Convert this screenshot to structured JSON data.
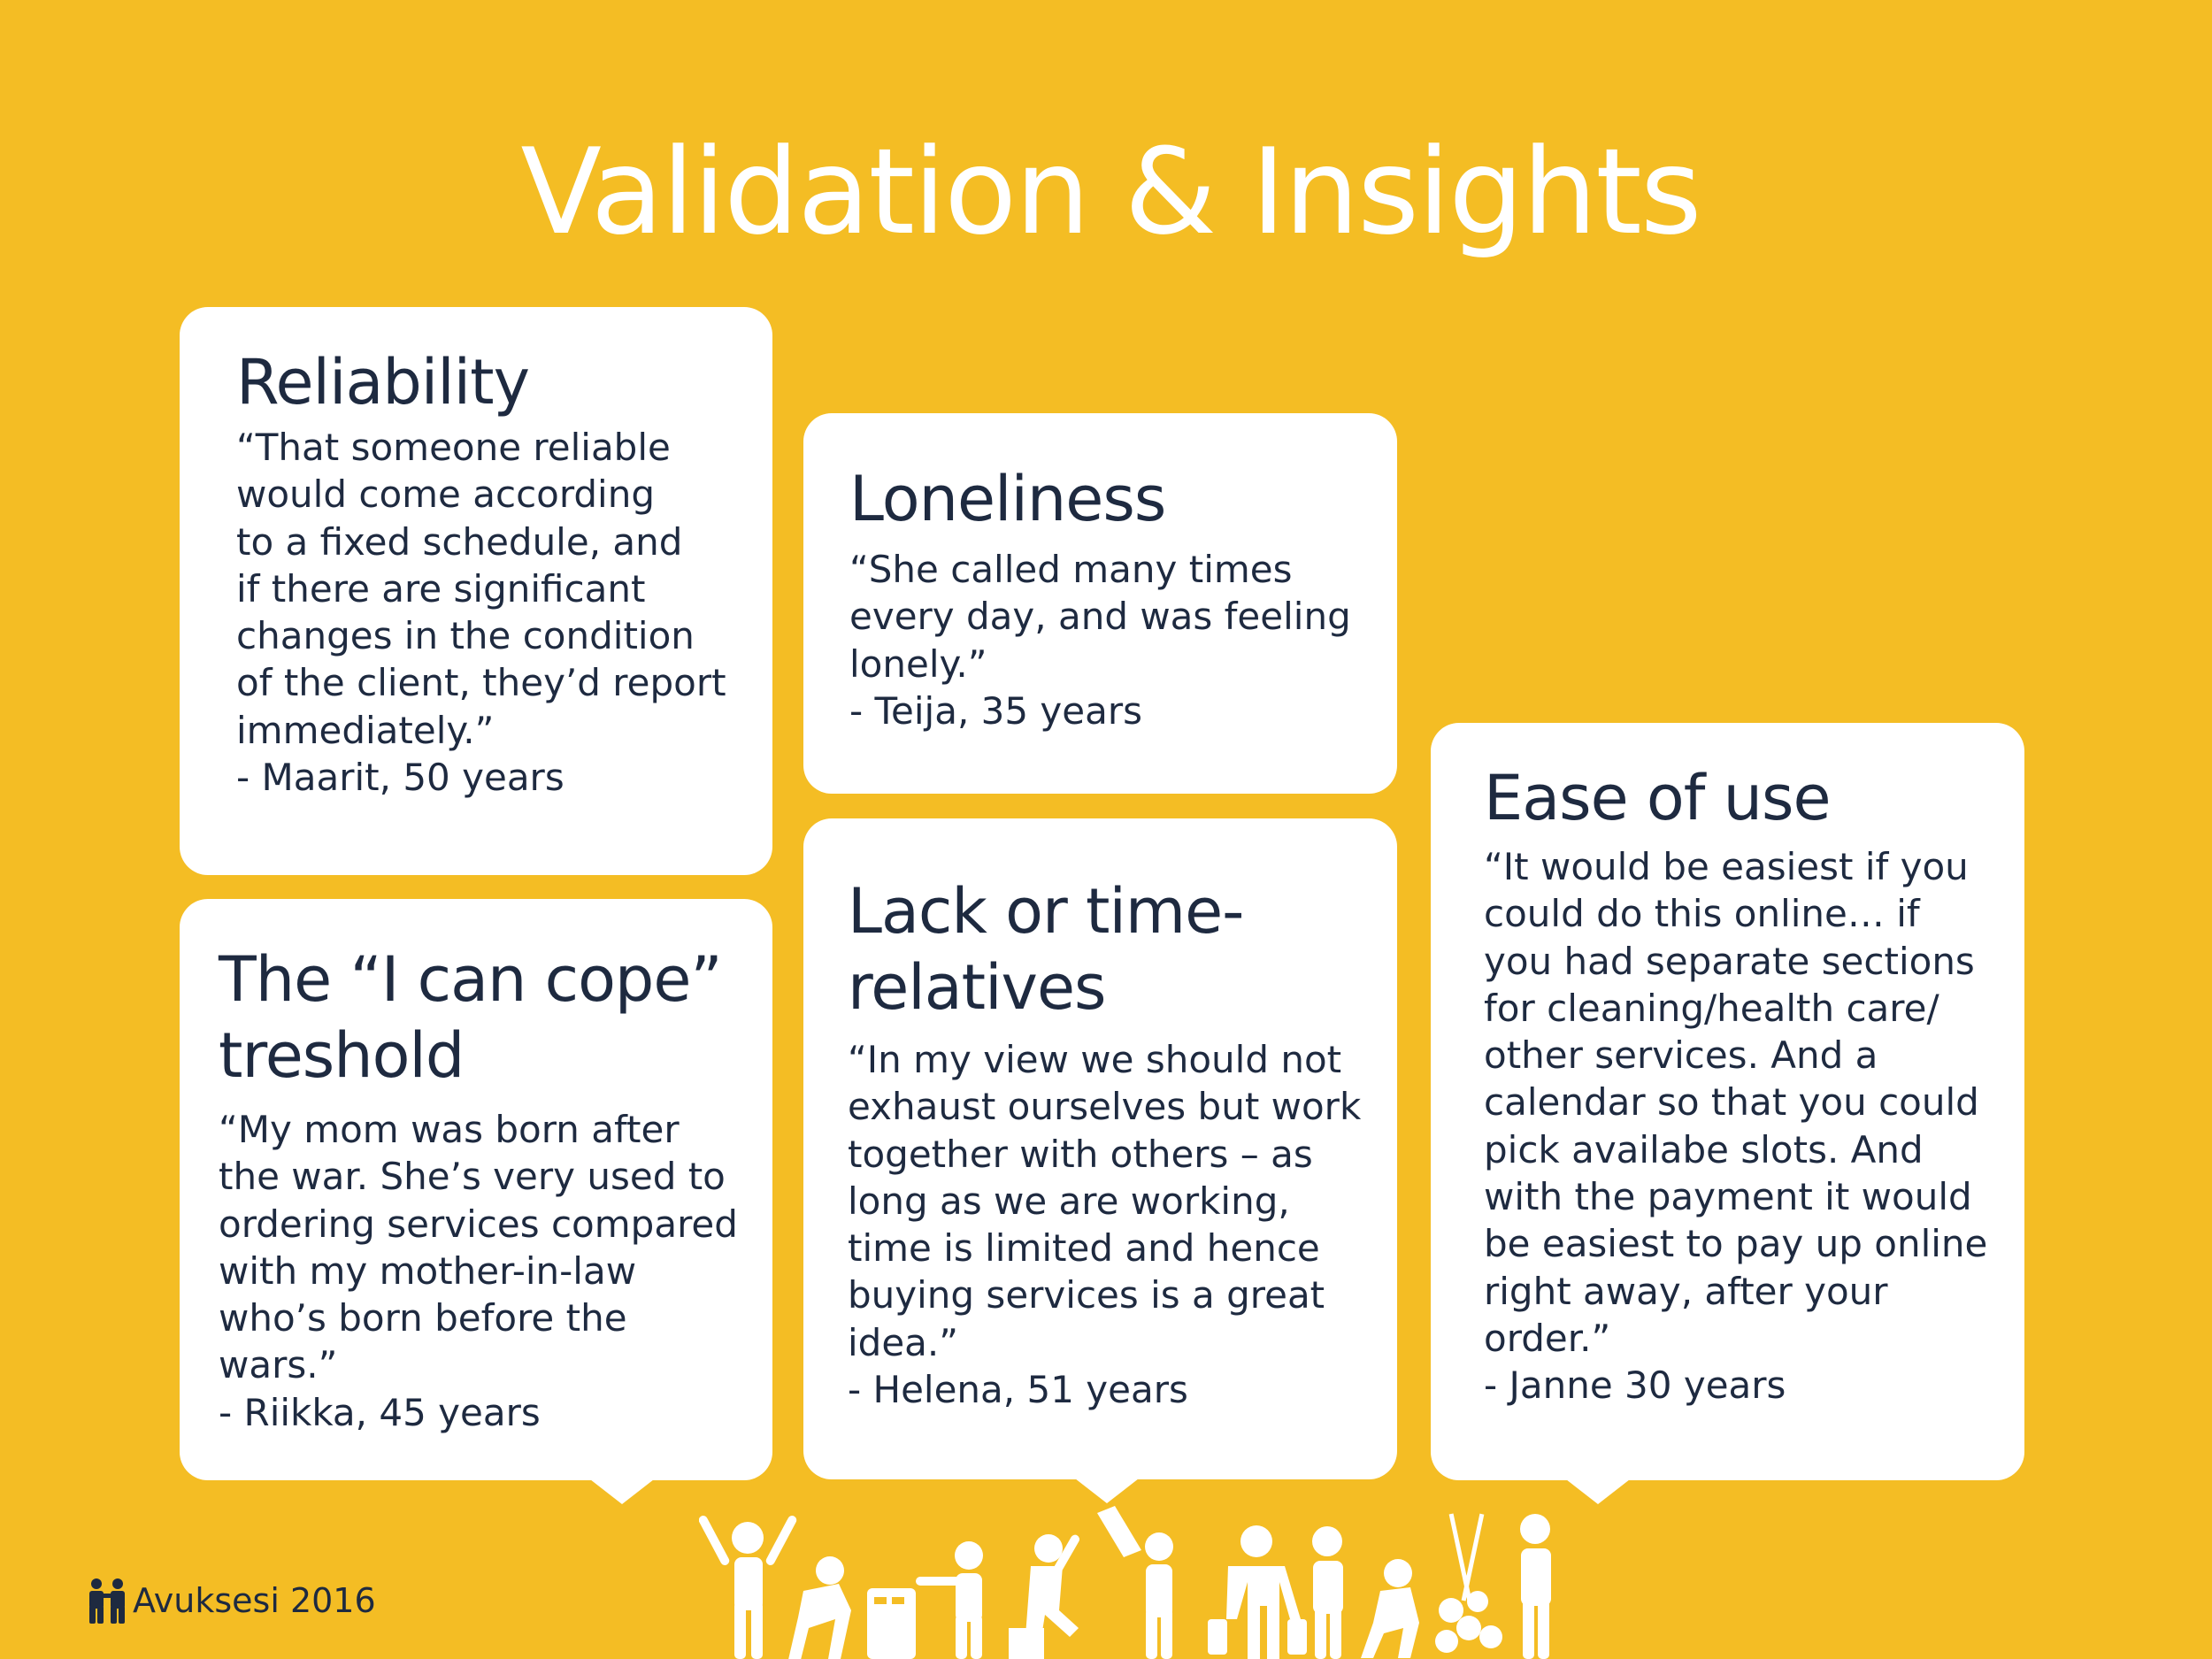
{
  "title": "Validation & Insights",
  "cards": {
    "reliability": {
      "heading": "Reliability",
      "quote": "“That someone reliable\nwould come according\nto a fixed schedule, and\nif there are significant\nchanges in the condition\nof the client, they’d report\nimmediately.”",
      "author": "- Maarit, 50 years"
    },
    "loneliness": {
      "heading": "Loneliness",
      "quote": "“She called many times\nevery day, and was feeling\nlonely.”",
      "author": "- Teija, 35 years"
    },
    "cope": {
      "heading": "The “I can cope” treshold",
      "quote": "“My mom was born after\nthe war. She’s very used to\nordering services compared\nwith my mother-in-law\nwho’s born before the\nwars.”",
      "author": "- Riikka, 45 years"
    },
    "lack": {
      "heading": "Lack or time-relatives",
      "quote": "“In my view we should not\nexhaust ourselves but work\ntogether with others – as\nlong as we are working,\ntime is limited and hence\nbuying services is a great\nidea.”",
      "author": "- Helena, 51 years"
    },
    "ease": {
      "heading": "Ease of use",
      "quote": "“It would be easiest if you\ncould do this online… if\nyou had separate sections\nfor cleaning/health care/\nother services. And a\ncalendar so that you could\npick availabe slots. And\nwith the payment it would\nbe easiest to pay up online\nright away, after your\norder.”",
      "author": "- Janne 30 years"
    }
  },
  "footer": {
    "brand": "Avuksesi 2016"
  },
  "icons": [
    "logo-people-icon",
    "people-activities-illustration"
  ],
  "colors": {
    "background": "#F4BD24",
    "card": "#FFFFFF",
    "text": "#1E2A40"
  }
}
